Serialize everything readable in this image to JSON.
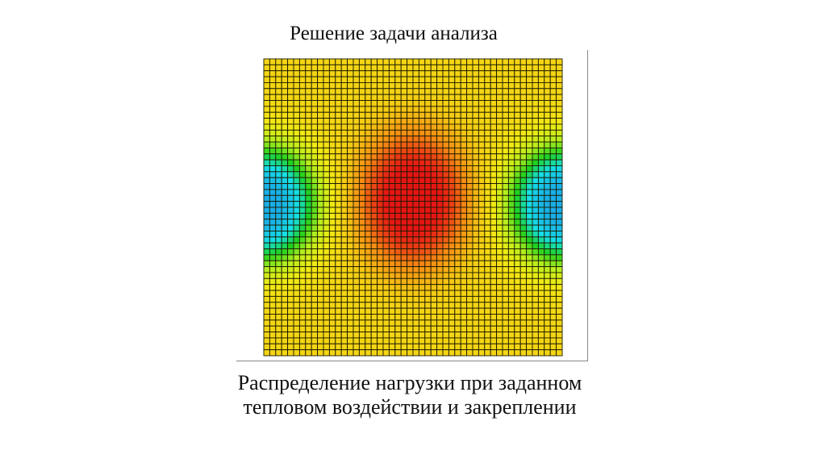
{
  "slide": {
    "title": "Решение задачи анализа",
    "caption_line1": "Распределение нагрузки при заданном",
    "caption_line2": "тепловом воздействии и закреплении"
  },
  "figure": {
    "type": "fea-contour-mesh",
    "mesh_divisions": 50,
    "grid_line_color": "#1a1a00",
    "colormap": [
      "#19aee8",
      "#14e0e6",
      "#1ed21e",
      "#b4ee1e",
      "#f2ea14",
      "#f5c814",
      "#f58a14",
      "#e61414"
    ]
  }
}
